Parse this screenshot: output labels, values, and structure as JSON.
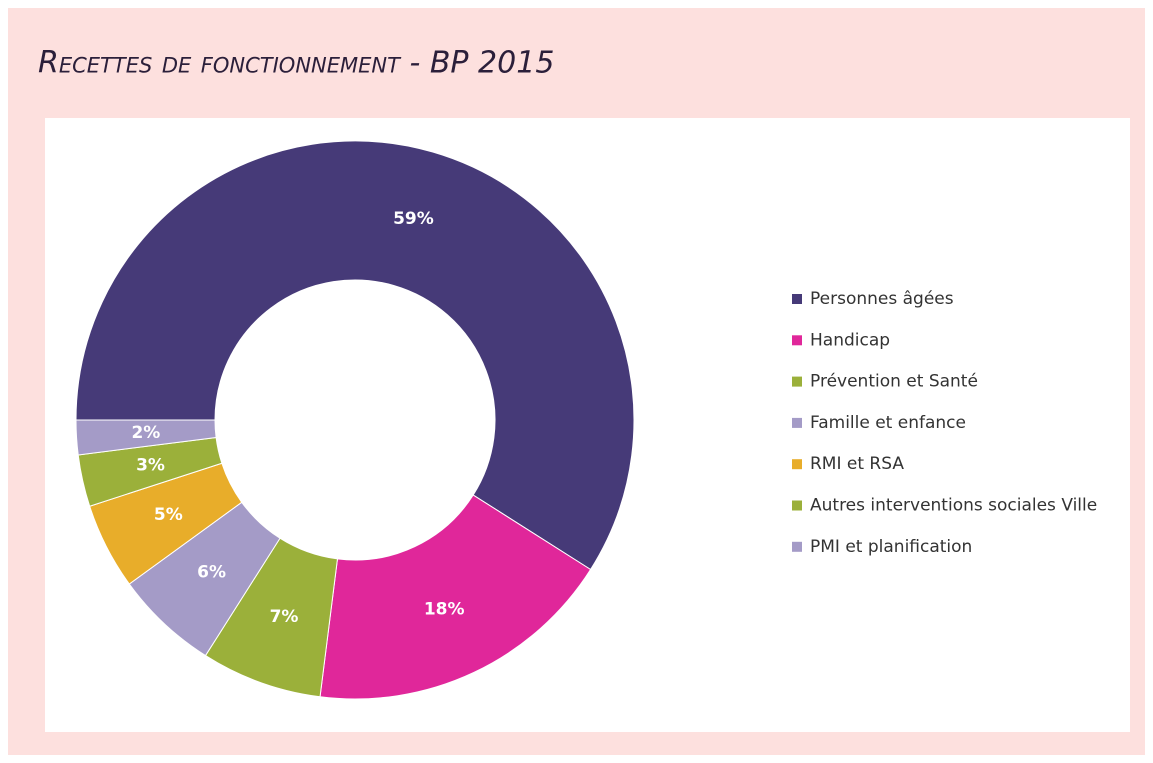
{
  "chart_data": {
    "type": "donut",
    "title": "Recettes de fonctionnement - BP 2015",
    "categories": [
      "Personnes âgées",
      "Handicap",
      "Prévention et Santé",
      "Famille et enfance",
      "RMI et RSA",
      "Autres interventions sociales Ville",
      "PMI et planification"
    ],
    "values": [
      59,
      18,
      7,
      6,
      5,
      3,
      2
    ],
    "value_labels": [
      "59%",
      "18%",
      "7%",
      "6%",
      "5%",
      "3%",
      "2%"
    ],
    "colors": [
      "#463a78",
      "#e0279a",
      "#9bb03a",
      "#a49bc7",
      "#e8ad2a",
      "#9bb03a",
      "#a49bc7"
    ],
    "legend": "right"
  }
}
